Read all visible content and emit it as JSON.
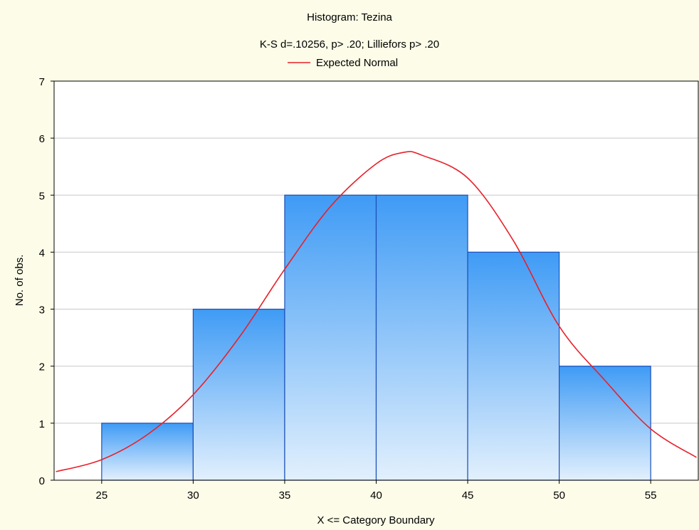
{
  "colors": {
    "background": "#fcfce8",
    "plot_background": "#ffffff",
    "bar_top": "#3f9bf5",
    "bar_bottom": "#e2f0fd",
    "bar_edge": "#1c4fb8",
    "curve": "#e8202a",
    "grid": "#c8c8c8"
  },
  "chart_data": {
    "type": "bar",
    "title": "Histogram: Tezina",
    "subtitle": "K-S d=.10256, p> .20; Lilliefors p> .20",
    "xlabel": "X <= Category Boundary",
    "ylabel": "No. of obs.",
    "legend": {
      "position": "top-center",
      "entries": [
        {
          "name": "Expected Normal",
          "style": "line",
          "color": "#e8202a"
        }
      ]
    },
    "xlim": [
      22.4,
      57.6
    ],
    "ylim": [
      0,
      7
    ],
    "grid": {
      "horizontal": true,
      "vertical": false
    },
    "x_ticks": [
      25,
      30,
      35,
      40,
      45,
      50,
      55
    ],
    "y_ticks": [
      0,
      1,
      2,
      3,
      4,
      5,
      6,
      7
    ],
    "bins": [
      {
        "from": 25,
        "to": 30,
        "count": 1
      },
      {
        "from": 30,
        "to": 35,
        "count": 3
      },
      {
        "from": 35,
        "to": 40,
        "count": 5
      },
      {
        "from": 40,
        "to": 45,
        "count": 5
      },
      {
        "from": 45,
        "to": 50,
        "count": 4
      },
      {
        "from": 50,
        "to": 55,
        "count": 2
      }
    ],
    "series": [
      {
        "name": "Expected Normal",
        "type": "line",
        "x": [
          22.5,
          25,
          27.5,
          30,
          32.5,
          35,
          37.5,
          40,
          41.5,
          42.5,
          45,
          47.5,
          50,
          52.5,
          55,
          57.5
        ],
        "y": [
          0.15,
          0.36,
          0.8,
          1.5,
          2.5,
          3.7,
          4.8,
          5.55,
          5.75,
          5.7,
          5.3,
          4.2,
          2.7,
          1.75,
          0.9,
          0.4
        ]
      }
    ]
  }
}
